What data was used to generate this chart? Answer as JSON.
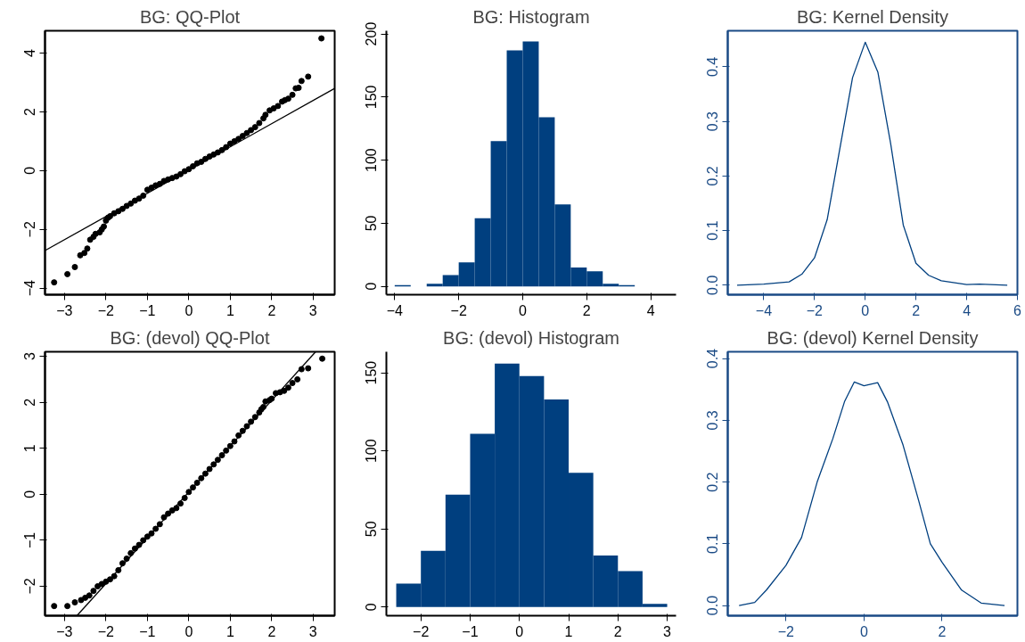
{
  "chart_data": [
    {
      "type": "scatter",
      "title": "BG: QQ-Plot",
      "xlim": [
        -3.47,
        3.52
      ],
      "ylim": [
        -4.22,
        4.76
      ],
      "xticks": [
        -3,
        -2,
        -1,
        0,
        1,
        2,
        3
      ],
      "yticks": [
        -4,
        -2,
        0,
        2,
        4
      ],
      "grid": false,
      "series": [
        {
          "type": "scatter",
          "marker": "circle",
          "color": "#000000",
          "x": [
            -3.25,
            -2.93,
            -2.75,
            -2.62,
            -2.52,
            -2.45,
            -2.38,
            -2.3,
            -2.25,
            -2.15,
            -2.1,
            -2.05,
            -2.0,
            -1.95,
            -1.9,
            -1.8,
            -1.7,
            -1.6,
            -1.5,
            -1.4,
            -1.3,
            -1.2,
            -1.1,
            -1.0,
            -0.9,
            -0.8,
            -0.7,
            -0.6,
            -0.5,
            -0.4,
            -0.3,
            -0.2,
            -0.1,
            0.0,
            0.1,
            0.2,
            0.3,
            0.4,
            0.5,
            0.6,
            0.7,
            0.8,
            0.9,
            1.0,
            1.1,
            1.2,
            1.3,
            1.4,
            1.5,
            1.6,
            1.7,
            1.8,
            1.85,
            1.95,
            2.05,
            2.15,
            2.25,
            2.32,
            2.4,
            2.5,
            2.58,
            2.65,
            2.72,
            2.88,
            3.2
          ],
          "values": [
            -3.8,
            -3.52,
            -3.28,
            -2.88,
            -2.8,
            -2.65,
            -2.35,
            -2.25,
            -2.15,
            -2.1,
            -2.0,
            -1.9,
            -1.7,
            -1.6,
            -1.55,
            -1.45,
            -1.38,
            -1.3,
            -1.2,
            -1.12,
            -1.02,
            -0.95,
            -0.85,
            -0.65,
            -0.58,
            -0.5,
            -0.45,
            -0.35,
            -0.3,
            -0.25,
            -0.2,
            -0.12,
            -0.02,
            0.05,
            0.15,
            0.25,
            0.3,
            0.4,
            0.48,
            0.55,
            0.62,
            0.7,
            0.8,
            0.92,
            1.0,
            1.08,
            1.18,
            1.28,
            1.38,
            1.48,
            1.62,
            1.78,
            1.9,
            2.05,
            2.12,
            2.2,
            2.35,
            2.4,
            2.45,
            2.58,
            2.8,
            2.82,
            3.05,
            3.2,
            4.5
          ]
        },
        {
          "type": "line",
          "color": "#000000",
          "x": [
            -3.47,
            3.52
          ],
          "values": [
            -2.72,
            2.8
          ]
        }
      ]
    },
    {
      "type": "histogram",
      "title": "BG: Histogram",
      "xlim": [
        -4.26,
        4.79
      ],
      "ylim": [
        -6.6,
        202.5
      ],
      "xticks": [
        -4,
        -2,
        0,
        2,
        4
      ],
      "yticks": [
        0,
        50,
        100,
        150,
        200
      ],
      "color": "#003f7f",
      "grid": false,
      "bins": [
        -4,
        -3.5,
        -3,
        -2.5,
        -2,
        -1.5,
        -1,
        -0.5,
        0,
        0.5,
        1,
        1.5,
        2,
        2.5,
        3,
        3.5
      ],
      "values": [
        1,
        0,
        2,
        9,
        19,
        54,
        115,
        187,
        194,
        134,
        65,
        15,
        12,
        2,
        1
      ]
    },
    {
      "type": "line",
      "title": "BG: Kernel Density",
      "xlim": [
        -5.42,
        6.0
      ],
      "ylim": [
        -0.0175,
        0.466
      ],
      "xticks": [
        -4,
        -2,
        0,
        2,
        4,
        6
      ],
      "yticks": [
        {
          "value": 0,
          "label": "0.0"
        },
        0.1,
        0.2,
        0.3,
        0.4
      ],
      "color": "#003f7f",
      "grid": false,
      "x": [
        -5.05,
        -4,
        -3,
        -2.5,
        -2,
        -1.5,
        -1,
        -0.5,
        0,
        0.5,
        1,
        1.5,
        2,
        2.5,
        3,
        4,
        4.5,
        5.6
      ],
      "values": [
        0,
        0.002,
        0.006,
        0.02,
        0.05,
        0.12,
        0.25,
        0.38,
        0.445,
        0.39,
        0.26,
        0.11,
        0.04,
        0.018,
        0.008,
        0.001,
        0.002,
        0
      ]
    },
    {
      "type": "scatter",
      "title": "BG: (devol) QQ-Plot",
      "xlim": [
        -3.47,
        3.52
      ],
      "ylim": [
        -2.64,
        3.1
      ],
      "xticks": [
        -3,
        -2,
        -1,
        0,
        1,
        2,
        3
      ],
      "yticks": [
        -2,
        -1,
        0,
        1,
        2,
        3
      ],
      "grid": false,
      "series": [
        {
          "type": "scatter",
          "marker": "circle",
          "color": "#000000",
          "x": [
            -3.25,
            -2.93,
            -2.75,
            -2.6,
            -2.5,
            -2.4,
            -2.3,
            -2.2,
            -2.1,
            -2.0,
            -1.9,
            -1.8,
            -1.7,
            -1.6,
            -1.5,
            -1.4,
            -1.3,
            -1.2,
            -1.1,
            -1.0,
            -0.9,
            -0.8,
            -0.7,
            -0.6,
            -0.5,
            -0.4,
            -0.3,
            -0.2,
            -0.1,
            0.0,
            0.1,
            0.2,
            0.3,
            0.4,
            0.5,
            0.6,
            0.7,
            0.8,
            0.9,
            1.0,
            1.1,
            1.2,
            1.3,
            1.4,
            1.5,
            1.6,
            1.7,
            1.75,
            1.8,
            1.85,
            1.95,
            2.0,
            2.1,
            2.2,
            2.3,
            2.4,
            2.5,
            2.62,
            2.72,
            2.88,
            3.22
          ],
          "values": [
            -2.43,
            -2.43,
            -2.35,
            -2.3,
            -2.25,
            -2.2,
            -2.1,
            -2.0,
            -1.95,
            -1.9,
            -1.85,
            -1.78,
            -1.65,
            -1.5,
            -1.4,
            -1.28,
            -1.18,
            -1.1,
            -1.0,
            -0.92,
            -0.85,
            -0.75,
            -0.65,
            -0.5,
            -0.42,
            -0.35,
            -0.3,
            -0.2,
            -0.08,
            0.05,
            0.15,
            0.25,
            0.35,
            0.45,
            0.55,
            0.65,
            0.75,
            0.85,
            0.95,
            1.05,
            1.15,
            1.28,
            1.38,
            1.48,
            1.58,
            1.68,
            1.78,
            1.85,
            1.9,
            2.02,
            2.05,
            2.08,
            2.2,
            2.22,
            2.25,
            2.32,
            2.42,
            2.5,
            2.72,
            2.74,
            2.95
          ]
        },
        {
          "type": "line",
          "color": "#000000",
          "x": [
            -2.7,
            3.06
          ],
          "values": [
            -2.64,
            3.1
          ]
        }
      ]
    },
    {
      "type": "histogram",
      "title": "BG: (devol) Histogram",
      "xlim": [
        -2.7,
        3.18
      ],
      "ylim": [
        -5.5,
        163.5
      ],
      "xticks": [
        -2,
        -1,
        0,
        1,
        2,
        3
      ],
      "yticks": [
        0,
        50,
        100,
        150
      ],
      "color": "#003f7f",
      "grid": false,
      "bins": [
        -2.5,
        -2,
        -1.5,
        -1,
        -0.5,
        0,
        0.5,
        1,
        1.5,
        2,
        2.5,
        3
      ],
      "values": [
        15,
        36,
        72,
        111,
        156,
        148,
        133,
        86,
        33,
        23,
        2
      ]
    },
    {
      "type": "line",
      "title": "BG: (devol) Kernel Density",
      "xlim": [
        -3.49,
        3.93
      ],
      "ylim": [
        -0.0165,
        0.411
      ],
      "xticks": [
        -2,
        0,
        2
      ],
      "yticks": [
        {
          "value": 0,
          "label": "0.0"
        },
        0.1,
        0.2,
        0.3,
        0.4
      ],
      "color": "#003f7f",
      "grid": false,
      "x": [
        -3.2,
        -2.8,
        -2.5,
        -2,
        -1.6,
        -1.2,
        -0.8,
        -0.5,
        -0.25,
        0,
        0.35,
        0.6,
        1,
        1.4,
        1.7,
        2,
        2.5,
        3,
        3.6
      ],
      "values": [
        0,
        0.005,
        0.025,
        0.065,
        0.11,
        0.2,
        0.27,
        0.33,
        0.362,
        0.356,
        0.361,
        0.33,
        0.26,
        0.17,
        0.1,
        0.07,
        0.025,
        0.004,
        0
      ]
    }
  ]
}
